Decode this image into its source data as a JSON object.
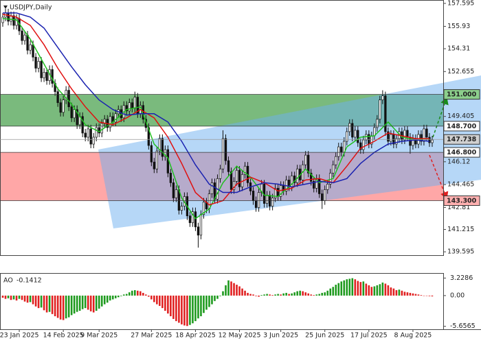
{
  "chart_data": {
    "type": "candlestick",
    "title": "USDJPY,Daily",
    "xlim": [
      -1,
      160
    ],
    "ylim": [
      139.35,
      157.84
    ],
    "xticks": [
      {
        "value": 6,
        "label": "23 Jan 2025"
      },
      {
        "value": 22,
        "label": "14 Feb 2025"
      },
      {
        "value": 35,
        "label": "9 Mar 2025"
      },
      {
        "value": 54,
        "label": "27 Mar 2025"
      },
      {
        "value": 70,
        "label": "18 Apr 2025"
      },
      {
        "value": 86,
        "label": "12 May 2025"
      },
      {
        "value": 101,
        "label": "3 Jun 2025"
      },
      {
        "value": 117,
        "label": "25 Jun 2025"
      },
      {
        "value": 133,
        "label": "17 Jul 2025"
      },
      {
        "value": 149,
        "label": "8 Aug 2025"
      }
    ],
    "yticks": [
      157.595,
      155.93,
      154.31,
      152.655,
      149.405,
      146.12,
      144.465,
      142.81,
      141.215,
      139.595
    ],
    "levels": [
      {
        "value": 151.0,
        "label": "151.000"
      },
      {
        "value": 148.7,
        "label": "148.700"
      },
      {
        "value": 146.8,
        "label": "146.800"
      },
      {
        "value": 143.3,
        "label": "143.300"
      }
    ],
    "current_price": {
      "value": 147.738,
      "label": "147.738"
    },
    "zones": [
      {
        "low": 148.7,
        "high": 151.0,
        "color": "#6cb36f"
      },
      {
        "low": 143.3,
        "high": 146.8,
        "color": "#ff9d9d"
      }
    ],
    "candles": {
      "open": [
        156.2,
        156.6,
        156.9,
        156.3,
        156.7,
        156.0,
        156.5,
        155.6,
        154.9,
        155.3,
        154.2,
        154.6,
        153.7,
        152.9,
        153.4,
        152.2,
        152.6,
        152.0,
        152.8,
        151.8,
        151.2,
        150.4,
        149.7,
        150.6,
        151.3,
        150.1,
        149.3,
        149.9,
        148.8,
        149.4,
        148.2,
        147.9,
        148.5,
        147.4,
        147.9,
        148.6,
        148.2,
        148.9,
        149.2,
        148.6,
        149.4,
        149.0,
        149.6,
        149.9,
        149.3,
        150.2,
        149.8,
        150.4,
        150.0,
        150.8,
        149.6,
        150.2,
        149.2,
        148.6,
        147.3,
        146.1,
        145.6,
        146.9,
        147.8,
        146.5,
        147.0,
        145.3,
        144.6,
        143.5,
        144.1,
        142.6,
        142.9,
        143.6,
        142.2,
        141.7,
        142.5,
        141.4,
        140.8,
        142.3,
        143.2,
        142.7,
        143.8,
        144.6,
        143.4,
        144.9,
        145.6,
        147.8,
        146.2,
        145.4,
        144.1,
        144.7,
        145.5,
        144.3,
        145.2,
        145.8,
        144.6,
        144.0,
        143.3,
        142.8,
        143.9,
        144.5,
        143.1,
        143.7,
        142.9,
        143.5,
        144.2,
        143.6,
        144.4,
        144.0,
        144.8,
        144.3,
        145.1,
        144.6,
        145.6,
        144.8,
        145.9,
        146.6,
        145.3,
        144.7,
        144.2,
        144.9,
        143.8,
        143.3,
        144.1,
        144.5,
        145.3,
        145.9,
        146.5,
        147.2,
        146.8,
        147.6,
        148.3,
        148.9,
        147.9,
        148.4,
        147.5,
        147.0,
        147.7,
        148.1,
        147.4,
        148.0,
        148.6,
        149.2,
        150.6,
        150.9,
        148.3,
        147.6,
        148.1,
        147.4,
        147.8,
        148.3,
        147.7,
        148.4,
        147.9,
        147.3,
        147.8,
        147.4,
        148.1,
        147.6,
        148.5,
        147.9,
        147.5
      ],
      "high": [
        156.9,
        157.2,
        157.2,
        157.0,
        157.0,
        156.8,
        156.8,
        155.9,
        155.6,
        155.6,
        154.9,
        154.9,
        154.0,
        153.7,
        153.7,
        152.9,
        152.9,
        153.1,
        153.1,
        152.1,
        151.5,
        150.7,
        150.9,
        151.6,
        151.6,
        150.4,
        150.2,
        150.2,
        149.7,
        149.7,
        148.5,
        148.8,
        148.8,
        148.2,
        148.9,
        148.9,
        149.2,
        149.5,
        149.5,
        149.7,
        149.7,
        149.9,
        150.2,
        150.2,
        150.5,
        150.5,
        150.7,
        150.7,
        151.2,
        151.1,
        150.5,
        150.5,
        149.5,
        148.9,
        147.6,
        146.4,
        147.2,
        148.1,
        148.1,
        147.3,
        147.3,
        145.6,
        144.9,
        144.4,
        144.4,
        143.2,
        143.9,
        143.9,
        142.5,
        142.8,
        142.8,
        141.7,
        142.6,
        143.5,
        143.5,
        144.1,
        144.9,
        144.9,
        145.2,
        145.9,
        148.4,
        148.1,
        146.5,
        145.7,
        145.0,
        145.8,
        145.8,
        145.5,
        146.1,
        146.1,
        144.9,
        144.3,
        143.6,
        144.2,
        144.8,
        144.8,
        144.0,
        144.0,
        143.8,
        144.5,
        144.5,
        144.7,
        144.7,
        145.1,
        145.1,
        145.4,
        145.4,
        145.9,
        145.9,
        146.2,
        146.9,
        146.9,
        145.6,
        145.0,
        145.2,
        145.2,
        144.1,
        144.4,
        144.8,
        145.6,
        146.2,
        146.8,
        147.5,
        147.5,
        147.9,
        148.6,
        149.2,
        149.2,
        148.7,
        148.7,
        147.8,
        148.0,
        148.4,
        148.4,
        148.3,
        148.9,
        149.5,
        150.9,
        151.3,
        151.2,
        148.6,
        148.4,
        148.4,
        148.1,
        148.6,
        148.6,
        148.7,
        148.7,
        148.2,
        148.1,
        148.1,
        148.4,
        148.4,
        148.8,
        148.8,
        148.2,
        148.0
      ],
      "low": [
        155.9,
        156.3,
        156.0,
        156.0,
        155.7,
        155.7,
        155.3,
        154.6,
        154.6,
        153.9,
        153.9,
        153.4,
        152.6,
        152.6,
        151.9,
        151.9,
        151.7,
        151.7,
        151.5,
        150.9,
        150.1,
        149.4,
        149.4,
        150.3,
        149.8,
        149.0,
        149.0,
        148.5,
        148.5,
        147.9,
        147.6,
        147.6,
        147.1,
        147.1,
        147.6,
        147.9,
        147.9,
        148.6,
        148.3,
        148.3,
        148.7,
        148.7,
        149.3,
        149.0,
        149.0,
        149.5,
        149.5,
        149.7,
        149.7,
        149.3,
        149.3,
        148.9,
        148.3,
        147.0,
        145.8,
        145.3,
        145.3,
        146.6,
        146.2,
        146.2,
        145.0,
        144.3,
        143.2,
        143.2,
        142.3,
        142.3,
        142.6,
        141.9,
        141.4,
        141.4,
        141.1,
        139.9,
        140.5,
        142.0,
        142.4,
        142.4,
        143.5,
        143.1,
        143.1,
        144.6,
        145.3,
        145.9,
        145.1,
        143.8,
        143.8,
        144.4,
        144.0,
        144.0,
        144.9,
        144.3,
        143.7,
        143.0,
        142.5,
        142.5,
        143.6,
        142.8,
        142.8,
        142.6,
        142.6,
        143.2,
        143.3,
        143.3,
        143.7,
        143.7,
        144.0,
        144.0,
        144.3,
        144.3,
        144.5,
        144.5,
        145.6,
        145.0,
        144.4,
        143.9,
        143.9,
        143.5,
        142.7,
        143.0,
        143.8,
        144.2,
        145.0,
        145.6,
        146.2,
        146.5,
        146.5,
        147.3,
        148.0,
        147.6,
        147.6,
        147.2,
        146.7,
        146.7,
        147.4,
        147.1,
        147.1,
        147.7,
        148.3,
        148.9,
        150.3,
        148.0,
        147.3,
        147.3,
        147.1,
        147.1,
        147.5,
        147.4,
        147.4,
        147.6,
        146.7,
        147.0,
        147.1,
        147.1,
        147.3,
        147.3,
        147.6,
        147.2,
        147.2
      ],
      "close": [
        156.6,
        156.9,
        156.3,
        156.7,
        156.0,
        156.5,
        155.6,
        154.9,
        155.3,
        154.2,
        154.6,
        153.7,
        152.9,
        153.4,
        152.2,
        152.6,
        152.0,
        152.8,
        151.8,
        151.2,
        150.4,
        149.7,
        150.6,
        151.3,
        150.1,
        149.3,
        149.9,
        148.8,
        149.4,
        148.2,
        147.9,
        148.5,
        147.4,
        147.9,
        148.6,
        148.2,
        148.9,
        149.2,
        148.6,
        149.4,
        149.0,
        149.6,
        149.9,
        149.3,
        150.2,
        149.8,
        150.4,
        150.0,
        150.8,
        149.6,
        150.2,
        149.2,
        148.6,
        147.3,
        146.1,
        145.6,
        146.9,
        147.8,
        146.5,
        147.0,
        145.3,
        144.6,
        143.5,
        144.1,
        142.6,
        142.9,
        143.6,
        142.2,
        141.7,
        142.5,
        141.4,
        140.8,
        142.3,
        143.2,
        142.7,
        143.8,
        144.6,
        143.4,
        144.9,
        145.6,
        147.8,
        146.2,
        145.4,
        144.1,
        144.7,
        145.5,
        144.3,
        145.2,
        145.8,
        144.6,
        144.0,
        143.3,
        142.8,
        143.9,
        144.5,
        143.1,
        143.7,
        142.9,
        143.5,
        144.2,
        143.6,
        144.4,
        144.0,
        144.8,
        144.3,
        145.1,
        144.6,
        145.6,
        144.8,
        145.9,
        146.6,
        145.3,
        144.7,
        144.2,
        144.9,
        143.8,
        143.3,
        144.1,
        144.5,
        145.3,
        145.9,
        146.5,
        147.2,
        146.8,
        147.6,
        148.3,
        148.9,
        147.9,
        148.4,
        147.5,
        147.0,
        147.7,
        148.1,
        147.4,
        148.0,
        148.6,
        149.2,
        150.6,
        150.9,
        148.3,
        147.6,
        148.1,
        147.4,
        147.8,
        148.3,
        147.7,
        148.4,
        147.9,
        147.3,
        147.8,
        147.4,
        148.1,
        147.6,
        148.5,
        147.9,
        147.5,
        147.7
      ]
    },
    "moving_averages": {
      "x": [
        0,
        5,
        10,
        15,
        20,
        25,
        30,
        35,
        40,
        45,
        50,
        55,
        60,
        65,
        70,
        75,
        80,
        85,
        90,
        95,
        100,
        105,
        110,
        115,
        120,
        125,
        130,
        135,
        140,
        145,
        150,
        155
      ],
      "series": [
        {
          "color": "#1fbf1f",
          "values": [
            156.5,
            156.4,
            155.0,
            153.2,
            151.4,
            150.3,
            148.8,
            148.3,
            149.0,
            149.9,
            150.1,
            147.4,
            146.4,
            143.5,
            142.0,
            142.7,
            144.6,
            145.8,
            145.0,
            143.7,
            143.6,
            144.5,
            145.6,
            144.6,
            144.9,
            147.2,
            147.9,
            148.0,
            149.0,
            147.9,
            147.7,
            147.8
          ]
        },
        {
          "color": "#e01010",
          "values": [
            156.8,
            156.6,
            156.0,
            154.6,
            152.9,
            151.4,
            150.1,
            149.0,
            148.8,
            149.3,
            149.9,
            149.3,
            147.9,
            146.0,
            143.9,
            143.0,
            143.3,
            144.5,
            145.0,
            144.6,
            144.0,
            144.2,
            144.8,
            144.9,
            144.6,
            145.8,
            147.1,
            147.6,
            148.2,
            148.0,
            147.8,
            147.8
          ]
        },
        {
          "color": "#1a22b0",
          "values": [
            156.9,
            156.9,
            156.6,
            155.8,
            154.4,
            153.0,
            151.7,
            150.6,
            149.9,
            149.5,
            149.6,
            149.6,
            149.0,
            147.6,
            145.9,
            144.5,
            143.9,
            143.9,
            144.3,
            144.6,
            144.5,
            144.3,
            144.5,
            144.7,
            144.6,
            144.9,
            146.0,
            146.8,
            147.4,
            147.6,
            147.7,
            147.6
          ]
        }
      ]
    },
    "ao": {
      "name": "AO",
      "up_color": "#1e9a1e",
      "down_color": "#e02020",
      "ylim": [
        -6.2,
        3.9
      ],
      "yticks": [
        3.2286,
        {
          "value": 0,
          "label": "0.00"
        },
        -5.6565
      ],
      "values": [
        -0.4,
        -0.6,
        -0.5,
        -0.8,
        -0.7,
        -0.9,
        -0.6,
        -0.8,
        -1.1,
        -1.3,
        -1.2,
        -1.6,
        -2.0,
        -2.3,
        -2.2,
        -2.7,
        -3.1,
        -3.0,
        -3.4,
        -3.8,
        -4.1,
        -4.4,
        -4.5,
        -4.2,
        -4.0,
        -3.6,
        -3.3,
        -3.0,
        -2.8,
        -2.5,
        -2.3,
        -2.6,
        -2.9,
        -3.1,
        -2.8,
        -2.4,
        -2.0,
        -1.6,
        -1.3,
        -0.9,
        -0.7,
        -0.5,
        -0.3,
        -0.1,
        0.2,
        0.3,
        0.6,
        0.9,
        1.0,
        0.9,
        0.8,
        0.5,
        0.2,
        -0.2,
        -0.7,
        -1.2,
        -1.6,
        -1.9,
        -2.3,
        -2.8,
        -3.3,
        -3.8,
        -4.3,
        -4.7,
        -5.0,
        -5.3,
        -5.5,
        -5.6,
        -5.4,
        -5.1,
        -4.7,
        -4.2,
        -3.8,
        -3.2,
        -2.6,
        -2.1,
        -1.6,
        -1.0,
        -0.6,
        -0.1,
        0.8,
        1.9,
        2.8,
        2.6,
        2.3,
        2.0,
        1.7,
        1.3,
        0.9,
        0.5,
        0.3,
        0.2,
        -0.1,
        -0.2,
        0.1,
        0.2,
        0.3,
        0.2,
        0.1,
        0.2,
        0.3,
        0.2,
        0.4,
        0.5,
        0.3,
        0.4,
        0.6,
        0.8,
        0.9,
        0.8,
        0.6,
        0.4,
        0.2,
        0.1,
        0.2,
        0.3,
        0.5,
        0.6,
        0.9,
        1.3,
        1.6,
        2.0,
        2.3,
        2.6,
        2.8,
        3.0,
        3.1,
        3.2,
        3.0,
        2.7,
        2.5,
        2.6,
        2.2,
        1.9,
        1.6,
        1.7,
        1.9,
        2.1,
        2.4,
        2.2,
        1.9,
        1.5,
        1.3,
        1.0,
        1.1,
        0.9,
        0.7,
        0.6,
        0.5,
        0.4,
        0.3,
        0.2,
        0.1,
        0.0,
        -0.05,
        -0.1,
        -0.1412
      ]
    }
  }
}
